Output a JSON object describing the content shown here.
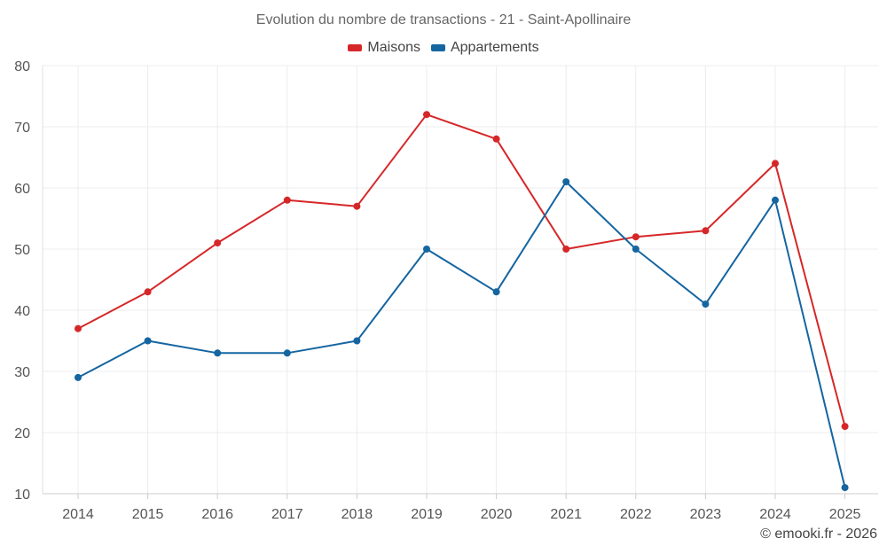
{
  "chart_data": {
    "type": "line",
    "title": "Evolution du nombre de transactions - 21 - Saint-Apollinaire",
    "categories": [
      "2014",
      "2015",
      "2016",
      "2017",
      "2018",
      "2019",
      "2020",
      "2021",
      "2022",
      "2023",
      "2024",
      "2025"
    ],
    "series": [
      {
        "name": "Maisons",
        "color": "#d62728",
        "values": [
          37,
          43,
          51,
          58,
          57,
          72,
          68,
          50,
          52,
          53,
          64,
          21
        ]
      },
      {
        "name": "Appartements",
        "color": "#1565a0",
        "values": [
          29,
          35,
          33,
          33,
          35,
          50,
          43,
          61,
          50,
          41,
          58,
          11
        ]
      }
    ],
    "ylim": [
      10,
      80
    ],
    "yticks": [
      "10",
      "20",
      "30",
      "40",
      "50",
      "60",
      "70",
      "80"
    ],
    "xlabel": "",
    "ylabel": "",
    "grid": true,
    "legend_position": "top-center"
  },
  "credit": "© emooki.fr - 2026"
}
